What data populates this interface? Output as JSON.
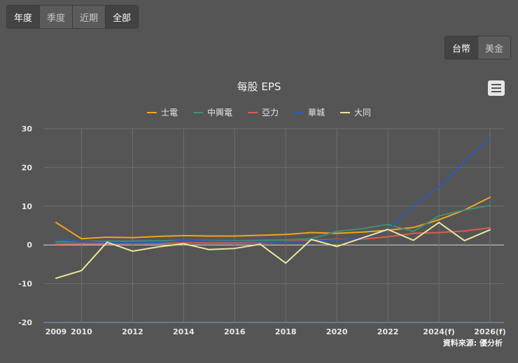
{
  "periods": [
    {
      "label": "年度",
      "active": true
    },
    {
      "label": "季度",
      "active": false
    },
    {
      "label": "近期",
      "active": false
    },
    {
      "label": "全部",
      "active": true
    }
  ],
  "currency": [
    {
      "label": "台幣",
      "active": true
    },
    {
      "label": "美金",
      "active": false
    }
  ],
  "credit": "資料來源: 優分析",
  "chart_data": {
    "type": "line",
    "title": "每股 EPS",
    "x": [
      2009,
      2010,
      2011,
      2012,
      2013,
      2014,
      2015,
      2016,
      2017,
      2018,
      2019,
      2020,
      2021,
      2022,
      2023,
      2024,
      2025,
      2026
    ],
    "x_tick_labels": [
      {
        "x": 2009,
        "label": "2009"
      },
      {
        "x": 2010,
        "label": "2010"
      },
      {
        "x": 2012,
        "label": "2012"
      },
      {
        "x": 2014,
        "label": "2014"
      },
      {
        "x": 2016,
        "label": "2016"
      },
      {
        "x": 2018,
        "label": "2018"
      },
      {
        "x": 2020,
        "label": "2020"
      },
      {
        "x": 2022,
        "label": "2022"
      },
      {
        "x": 2024,
        "label": "2024(f)"
      },
      {
        "x": 2026,
        "label": "2026(f)"
      }
    ],
    "ylim": [
      -20,
      30
    ],
    "yticks": [
      -20,
      -10,
      0,
      10,
      20,
      30
    ],
    "grid": true,
    "series": [
      {
        "name": "士電",
        "color": "#f2a31b",
        "values": [
          5.8,
          1.6,
          2.0,
          1.9,
          2.2,
          2.4,
          2.3,
          2.3,
          2.5,
          2.7,
          3.2,
          3.0,
          3.3,
          3.8,
          4.5,
          6.5,
          9.0,
          12.3
        ]
      },
      {
        "name": "中興電",
        "color": "#3f8f7a",
        "values": [
          0.8,
          0.9,
          1.0,
          1.0,
          1.1,
          1.2,
          1.2,
          1.1,
          1.2,
          1.3,
          1.6,
          3.5,
          4.2,
          5.3,
          3.5,
          7.5,
          9.0,
          10.2
        ]
      },
      {
        "name": "亞力",
        "color": "#e05a4f",
        "values": [
          0.2,
          0.3,
          0.3,
          0.4,
          0.4,
          0.5,
          0.5,
          0.5,
          0.6,
          0.8,
          1.2,
          1.4,
          1.5,
          2.1,
          3.0,
          3.2,
          3.6,
          4.4
        ]
      },
      {
        "name": "華城",
        "color": "#2e5bb8",
        "values": [
          1.4,
          0.9,
          0.6,
          0.5,
          0.6,
          1.2,
          1.0,
          0.9,
          0.8,
          0.7,
          1.0,
          1.3,
          1.6,
          3.8,
          10.0,
          15.0,
          21.5,
          27.7
        ]
      },
      {
        "name": "大同",
        "color": "#eae69a",
        "values": [
          -8.6,
          -6.6,
          0.7,
          -1.6,
          -0.5,
          0.3,
          -1.2,
          -0.9,
          0.2,
          -4.7,
          1.4,
          -0.4,
          1.8,
          4.0,
          1.2,
          5.8,
          1.1,
          3.9
        ]
      }
    ]
  }
}
